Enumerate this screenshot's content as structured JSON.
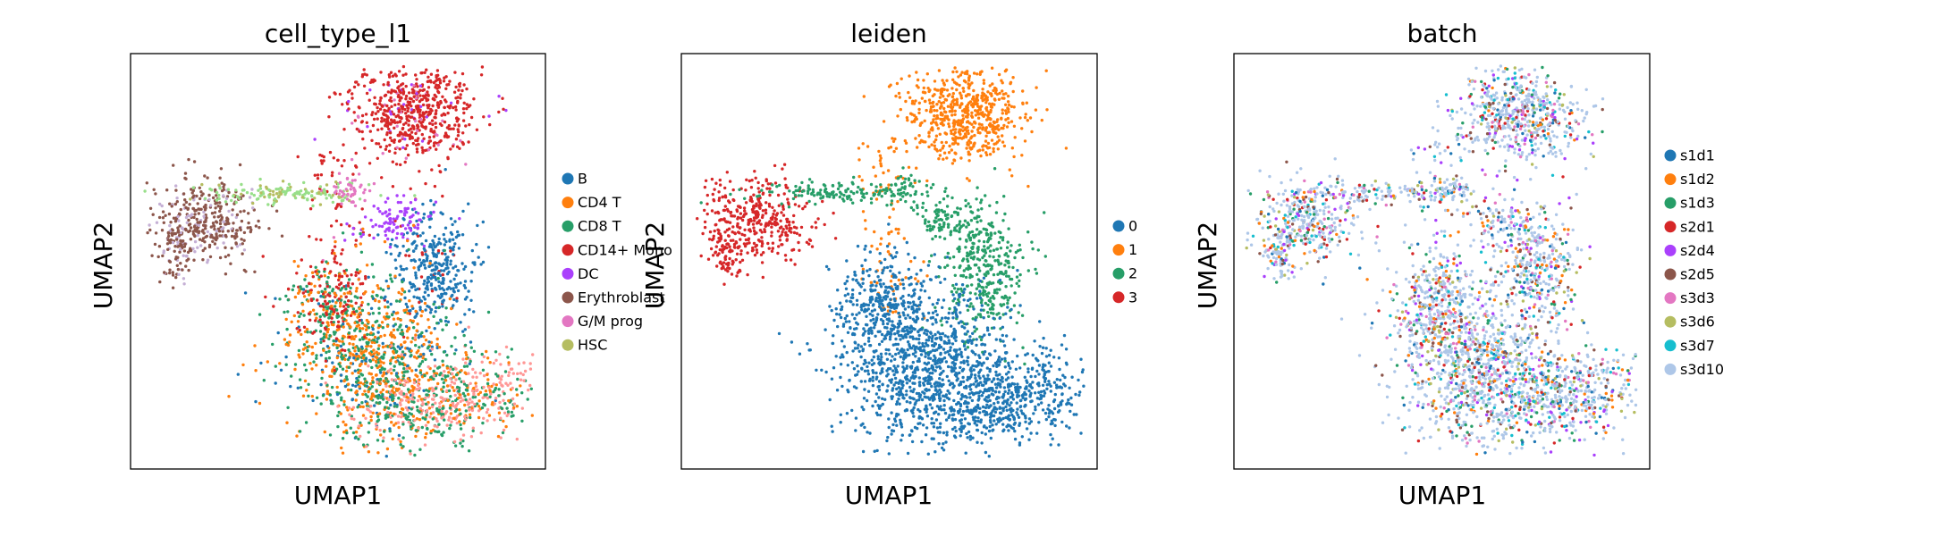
{
  "chart_data": [
    {
      "type": "scatter",
      "title": "cell_type_l1",
      "xlabel": "UMAP1",
      "ylabel": "UMAP2",
      "ticks": false,
      "grid": false,
      "legend": "right",
      "legend_entries": [
        {
          "label": "B",
          "color": "#1f77b4"
        },
        {
          "label": "CD4 T",
          "color": "#ff7f0e"
        },
        {
          "label": "CD8 T",
          "color": "#279e68"
        },
        {
          "label": "CD14+ Mono",
          "color": "#d62728"
        },
        {
          "label": "DC",
          "color": "#aa40fc"
        },
        {
          "label": "Erythroblast",
          "color": "#8c564b"
        },
        {
          "label": "G/M prog",
          "color": "#e377c2"
        },
        {
          "label": "HSC",
          "color": "#b5bd61"
        }
      ]
    },
    {
      "type": "scatter",
      "title": "leiden",
      "xlabel": "UMAP1",
      "ylabel": "UMAP2",
      "ticks": false,
      "grid": false,
      "legend": "right",
      "legend_entries": [
        {
          "label": "0",
          "color": "#1f77b4"
        },
        {
          "label": "1",
          "color": "#ff7f0e"
        },
        {
          "label": "2",
          "color": "#279e68"
        },
        {
          "label": "3",
          "color": "#d62728"
        }
      ]
    },
    {
      "type": "scatter",
      "title": "batch",
      "xlabel": "UMAP1",
      "ylabel": "UMAP2",
      "ticks": false,
      "grid": false,
      "legend": "right",
      "legend_entries": [
        {
          "label": "s1d1",
          "color": "#1f77b4"
        },
        {
          "label": "s1d2",
          "color": "#ff7f0e"
        },
        {
          "label": "s1d3",
          "color": "#279e68"
        },
        {
          "label": "s2d1",
          "color": "#d62728"
        },
        {
          "label": "s2d4",
          "color": "#aa40fc"
        },
        {
          "label": "s2d5",
          "color": "#8c564b"
        },
        {
          "label": "s3d3",
          "color": "#e377c2"
        },
        {
          "label": "s3d6",
          "color": "#b5bd61"
        },
        {
          "label": "s3d7",
          "color": "#17becf"
        },
        {
          "label": "s3d10",
          "color": "#aec7e8"
        }
      ]
    }
  ]
}
